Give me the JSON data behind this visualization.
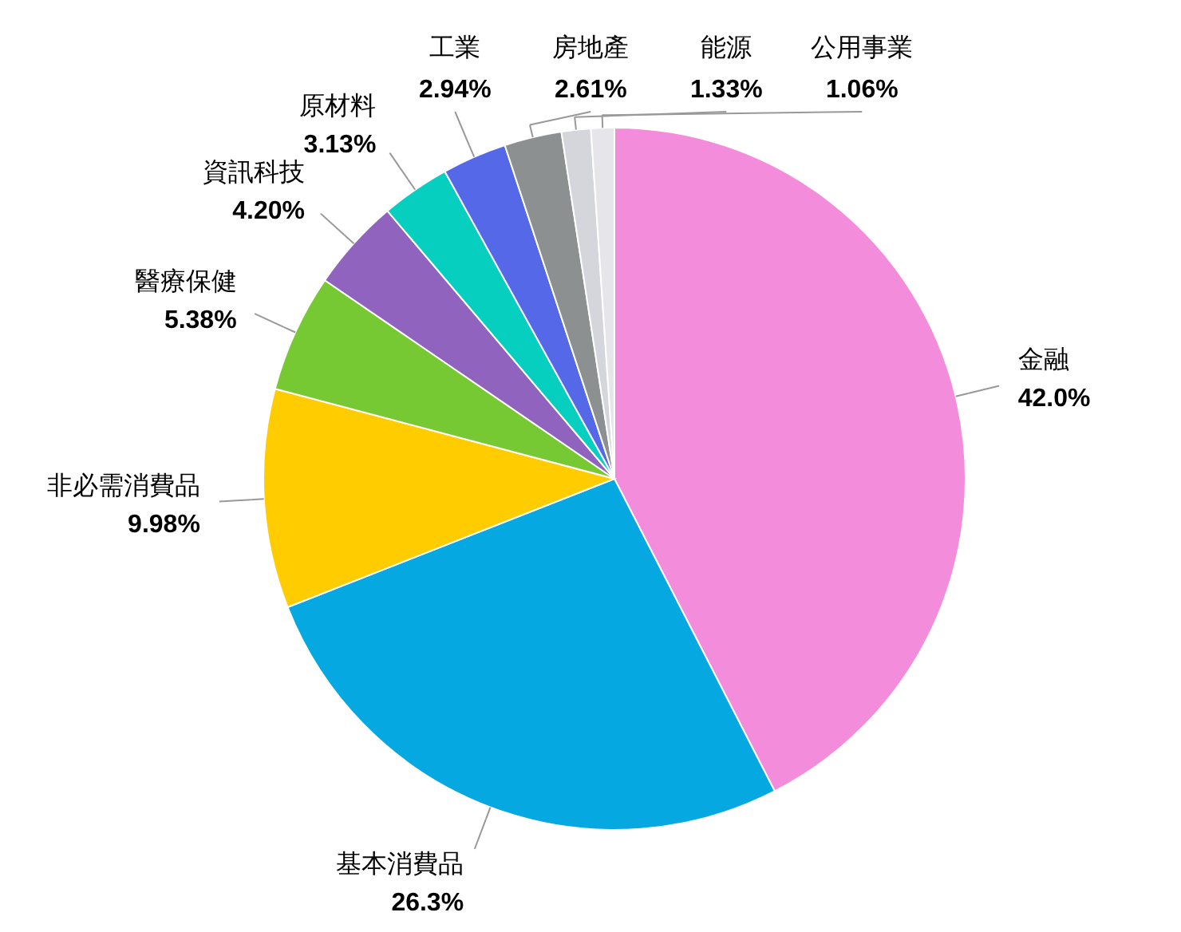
{
  "chart_data": {
    "type": "pie",
    "categories": [
      "金融",
      "基本消費品",
      "非必需消費品",
      "醫療保健",
      "資訊科技",
      "原材料",
      "工業",
      "房地產",
      "能源",
      "公用事業"
    ],
    "values": [
      42.0,
      26.3,
      9.98,
      5.38,
      4.2,
      3.13,
      2.94,
      2.61,
      1.33,
      1.06
    ],
    "value_labels": [
      "42.0%",
      "26.3%",
      "9.98%",
      "5.38%",
      "4.20%",
      "3.13%",
      "2.94%",
      "2.61%",
      "1.33%",
      "1.06%"
    ],
    "colors": [
      "#f48cdc",
      "#05a8e0",
      "#ffcc00",
      "#77c934",
      "#9063bf",
      "#07cfc0",
      "#5468e8",
      "#8c9090",
      "#d5d6dc",
      "#e6e6ea"
    ]
  }
}
